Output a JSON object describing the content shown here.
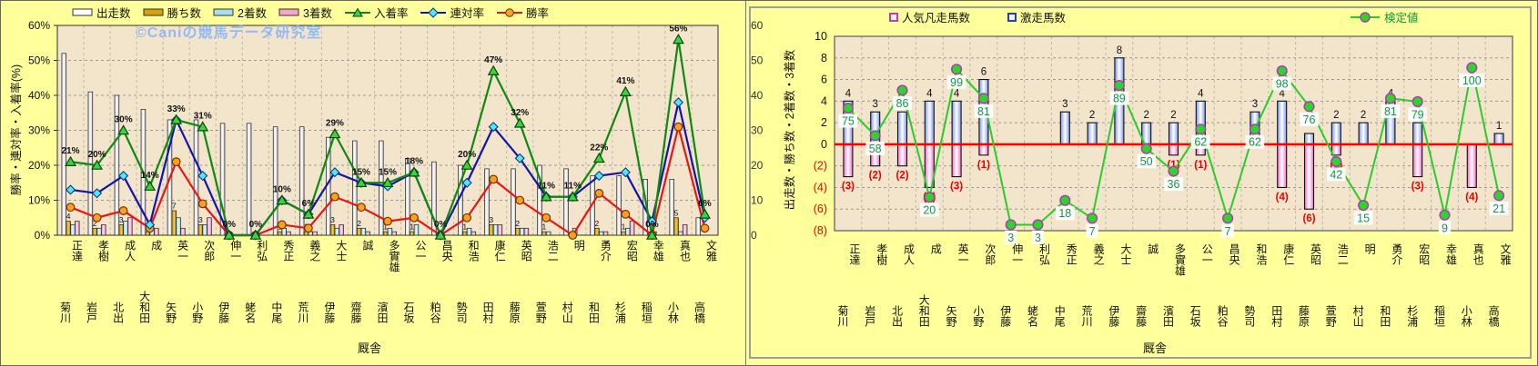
{
  "watermark": "©Caniの競馬データ研究室",
  "categories": [
    "菊川 正達",
    "岩戸 孝樹",
    "北出 成人",
    "大和田 成",
    "矢野 英一",
    "小野 次郎",
    "伊藤 伸一",
    "蛯名 利弘",
    "中尾 秀正",
    "荒川 義之",
    "伊藤 大士",
    "齋藤 誠",
    "濱田 多實雄",
    "石坂 公一",
    "粕谷 昌央",
    "勢司 和浩",
    "田村 康仁",
    "藤原 英昭",
    "萱野 浩二",
    "村山 明",
    "和田 勇介",
    "杉浦 宏昭",
    "稲垣 幸雄",
    "小林 真也",
    "高橋 文雅"
  ],
  "left": {
    "legend": [
      "出走数",
      "勝ち数",
      "2着数",
      "3着数",
      "入着率",
      "連対率",
      "勝率"
    ],
    "y_left_title": "勝率・連対率・入着率(%)",
    "y_right_title": "出走数・勝ち数・2着数・3着数",
    "x_title": "厩舎",
    "y_left_ticks": [
      {
        "v": 60,
        "t": "60%"
      },
      {
        "v": 50,
        "t": "50%"
      },
      {
        "v": 40,
        "t": "40%"
      },
      {
        "v": 30,
        "t": "30%"
      },
      {
        "v": 20,
        "t": "20%"
      },
      {
        "v": 10,
        "t": "10%"
      },
      {
        "v": 0,
        "t": "0%"
      }
    ],
    "y_right_ticks": [
      {
        "v": 60,
        "t": "60"
      },
      {
        "v": 50,
        "t": "50"
      },
      {
        "v": 40,
        "t": "40"
      },
      {
        "v": 30,
        "t": "30"
      },
      {
        "v": 20,
        "t": "20"
      },
      {
        "v": 10,
        "t": "10"
      },
      {
        "v": 0,
        "t": "0"
      }
    ]
  },
  "right": {
    "legend": {
      "bonso": "人気凡走馬数",
      "gekiso": "激走馬数",
      "kentei": "検定値"
    },
    "x_title": "厩舎",
    "y_ticks": [
      {
        "v": 10,
        "t": "10"
      },
      {
        "v": 8,
        "t": "8"
      },
      {
        "v": 6,
        "t": "6"
      },
      {
        "v": 4,
        "t": "4"
      },
      {
        "v": 2,
        "t": "2"
      },
      {
        "v": 0,
        "t": "0"
      },
      {
        "v": -2,
        "t": "(2)"
      },
      {
        "v": -4,
        "t": "(4)"
      },
      {
        "v": -6,
        "t": "(6)"
      },
      {
        "v": -8,
        "t": "(8)"
      }
    ]
  },
  "colors": {
    "starts_bar": "#ffffff",
    "wins_bar": "#d99e0b",
    "seconds_bar": "#a8e0ea",
    "thirds_bar": "#f2a7cb",
    "place_line": "#118811",
    "quinella_line": "#1414a8",
    "win_line": "#ee1414",
    "gekiso_bar": "#8fa6ef",
    "bonso_bar": "#f06ec8",
    "kentei_line": "#2bcb2b",
    "zero_line": "#ff0000",
    "negative_text": "#ee0000",
    "background": "#ffff9c",
    "plot_bg": "#f2e5cb"
  },
  "chart_data": [
    {
      "type": "bar",
      "subtype": "combo-bar-line",
      "title": "",
      "xlabel": "厩舎",
      "y_left": {
        "label": "勝率・連対率・入着率(%)",
        "range": [
          0,
          60
        ],
        "unit": "%"
      },
      "y_right": {
        "label": "出走数・勝ち数・2着数・3着数",
        "range": [
          0,
          60
        ]
      },
      "grid": true,
      "legend_position": "top",
      "bar_series": [
        {
          "name": "出走数",
          "axis": "right",
          "values": [
            52,
            41,
            40,
            36,
            33,
            33,
            32,
            32,
            31,
            31,
            28,
            27,
            27,
            22,
            21,
            20,
            19,
            19,
            20,
            19,
            17,
            17,
            16,
            16,
            5
          ]
        },
        {
          "name": "勝ち数",
          "axis": "right",
          "values": [
            4,
            2,
            3,
            1,
            7,
            3,
            0,
            0,
            1,
            1,
            3,
            2,
            1,
            1,
            0,
            1,
            3,
            2,
            1,
            0,
            2,
            1,
            0,
            5,
            0
          ],
          "labels": [
            "4",
            "2",
            "3",
            "1",
            "7",
            "3",
            "",
            "",
            "1",
            "1",
            "3",
            "2",
            "1",
            "1",
            "",
            "1",
            "3",
            "2",
            "1",
            "",
            "2",
            "1",
            "",
            "5",
            ""
          ]
        },
        {
          "name": "2着数",
          "axis": "right",
          "values": [
            3,
            2,
            4,
            2,
            5,
            3,
            0,
            0,
            2,
            1,
            2,
            2,
            2,
            3,
            0,
            2,
            3,
            2,
            1,
            2,
            1,
            2,
            1,
            1,
            0
          ]
        },
        {
          "name": "3着数",
          "axis": "right",
          "values": [
            4,
            3,
            5,
            2,
            2,
            5,
            0,
            0,
            1,
            1,
            3,
            1,
            1,
            0,
            0,
            1,
            3,
            2,
            0,
            0,
            1,
            4,
            0,
            3,
            0
          ]
        }
      ],
      "line_series": [
        {
          "name": "勝率",
          "marker": "circle",
          "axis": "left",
          "values": [
            8,
            5,
            7,
            2,
            21,
            9,
            0,
            0,
            3,
            2,
            11,
            8,
            4,
            5,
            0,
            5,
            16,
            10,
            5,
            0,
            12,
            6,
            0,
            31,
            2
          ]
        },
        {
          "name": "連対率",
          "marker": "diamond",
          "axis": "left",
          "values": [
            13,
            12,
            17,
            3,
            33,
            17,
            0,
            0,
            10,
            6,
            18,
            15,
            14,
            18,
            0,
            15,
            31,
            22,
            11,
            11,
            17,
            18,
            4,
            38,
            5
          ]
        },
        {
          "name": "入着率",
          "marker": "triangle",
          "axis": "left",
          "values": [
            21,
            20,
            30,
            14,
            33,
            31,
            0,
            0,
            10,
            6,
            29,
            15,
            15,
            18,
            0,
            20,
            47,
            32,
            11,
            11,
            22,
            41,
            0,
            56,
            6
          ],
          "labels": [
            "21%",
            "20%",
            "30%",
            "14%",
            "33%",
            "31%",
            "0%",
            "0%",
            "10%",
            "6%",
            "29%",
            "15%",
            "15%",
            "18%",
            "0%",
            "20%",
            "47%",
            "32%",
            "11%",
            "11%",
            "22%",
            "41%",
            "0%",
            "56%",
            "6%"
          ]
        }
      ]
    },
    {
      "type": "bar",
      "subtype": "diverging-bar-line",
      "title": "",
      "xlabel": "厩舎",
      "ylim": [
        -8,
        10
      ],
      "grid": true,
      "zero_line": true,
      "bar_series": [
        {
          "name": "激走馬数",
          "direction": "up",
          "values": [
            4,
            3,
            3,
            4,
            4,
            6,
            0,
            0,
            3,
            2,
            8,
            2,
            2,
            4,
            0,
            3,
            4,
            1,
            2,
            2,
            4,
            2,
            0,
            0,
            1
          ],
          "labels": [
            "4",
            "3",
            "3",
            "4",
            "4",
            "6",
            "",
            "",
            "3",
            "2",
            "8",
            "2",
            "2",
            "4",
            "",
            "3",
            "4",
            "",
            "2",
            "2",
            "4",
            "2",
            "",
            "",
            "1"
          ]
        },
        {
          "name": "人気凡走馬数",
          "direction": "down",
          "values": [
            3,
            2,
            2,
            4,
            3,
            1,
            0,
            0,
            0,
            0,
            0,
            0,
            1,
            1,
            0,
            0,
            4,
            6,
            1,
            0,
            0,
            3,
            0,
            4,
            0
          ],
          "labels": [
            "(3)",
            "(2)",
            "(2)",
            "(4)",
            "(3)",
            "(1)",
            "",
            "",
            "",
            "",
            "",
            "",
            "(1)",
            "(1)",
            "",
            "",
            "(4)",
            "(6)",
            "(1)",
            "",
            "",
            "(3)",
            "",
            "(4)",
            ""
          ]
        }
      ],
      "line_series": [
        {
          "name": "検定値",
          "marker": "circle",
          "value_range": [
            0,
            100
          ],
          "values": [
            75,
            58,
            86,
            20,
            99,
            81,
            3,
            3,
            18,
            7,
            89,
            50,
            36,
            62,
            7,
            62,
            98,
            76,
            42,
            15,
            81,
            79,
            9,
            100,
            21
          ],
          "labels": [
            "75",
            "58",
            "86",
            "20",
            "99",
            "81",
            "3",
            "3",
            "18",
            "7",
            "89",
            "50",
            "36",
            "62",
            "7",
            "62",
            "98",
            "76",
            "42",
            "15",
            "81",
            "79",
            "9",
            "100",
            "21"
          ]
        }
      ]
    }
  ]
}
